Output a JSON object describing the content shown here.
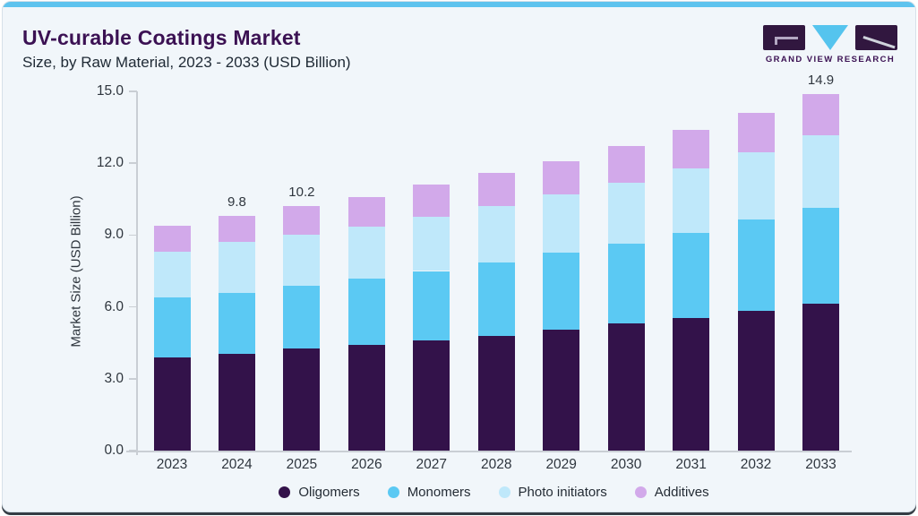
{
  "page": {
    "title": "UV-curable Coatings Market",
    "subtitle": "Size, by Raw Material, 2023 - 2033 (USD Billion)"
  },
  "logo": {
    "name": "Grand View Research logo",
    "wordmark": "GRAND VIEW RESEARCH"
  },
  "colors": {
    "accent_bar": "#5EC3EE",
    "title_text": "#3B1153",
    "card_background": "#F1F6FA",
    "axis_line": "#C9CED4",
    "axis_text": "#2F363E",
    "oligomers": "#33124A",
    "monomers": "#5BC9F3",
    "photo_initiators": "#BFE8FA",
    "additives": "#D2A9EA"
  },
  "chart_data": {
    "type": "bar",
    "stacked": true,
    "title": "UV-curable Coatings Market Size, by Raw Material, 2023 - 2033 (USD Billion)",
    "categories": [
      "2023",
      "2024",
      "2025",
      "2026",
      "2027",
      "2028",
      "2029",
      "2030",
      "2031",
      "2032",
      "2033"
    ],
    "series": [
      {
        "name": "Oligomers",
        "color": "#33124A",
        "values": [
          3.9,
          4.05,
          4.25,
          4.4,
          4.6,
          4.8,
          5.05,
          5.3,
          5.55,
          5.85,
          6.15
        ]
      },
      {
        "name": "Monomers",
        "color": "#5BC9F3",
        "values": [
          2.5,
          2.55,
          2.65,
          2.8,
          2.9,
          3.05,
          3.2,
          3.35,
          3.55,
          3.8,
          4.0
        ]
      },
      {
        "name": "Photo initiators",
        "color": "#BFE8FA",
        "values": [
          1.9,
          2.1,
          2.1,
          2.15,
          2.25,
          2.35,
          2.45,
          2.55,
          2.7,
          2.8,
          3.0
        ]
      },
      {
        "name": "Additives",
        "color": "#D2A9EA",
        "values": [
          1.1,
          1.1,
          1.2,
          1.25,
          1.35,
          1.4,
          1.4,
          1.5,
          1.6,
          1.65,
          1.75
        ]
      }
    ],
    "totals": [
      9.4,
      9.8,
      10.2,
      10.6,
      11.1,
      11.6,
      12.1,
      12.7,
      13.4,
      14.1,
      14.9
    ],
    "value_labels": [
      {
        "category": "2024",
        "text": "9.8"
      },
      {
        "category": "2025",
        "text": "10.2"
      },
      {
        "category": "2033",
        "text": "14.9"
      }
    ],
    "xlabel": "",
    "ylabel": "Market Size (USD Billion)",
    "ylim": [
      0,
      15
    ],
    "yticks": [
      "0.0",
      "3.0",
      "6.0",
      "9.0",
      "12.0",
      "15.0"
    ],
    "grid": false,
    "legend_position": "bottom"
  }
}
